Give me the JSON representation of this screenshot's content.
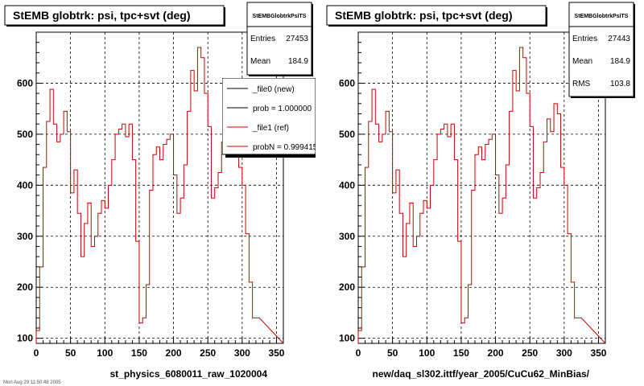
{
  "colors": {
    "background": "#ffffff",
    "axis": "#000000",
    "grid": "#000000",
    "hist_new": "#000000",
    "hist_ref": "#cc0000",
    "legend_shadow": "#000000"
  },
  "chart_data": [
    {
      "type": "histogram",
      "title": "StEMB globtrk: psi, tpc+svt (deg)",
      "xlabel": "st_physics_6080011_raw_1020004",
      "xlim": [
        0,
        360
      ],
      "ylim": [
        90,
        700
      ],
      "x_ticks": [
        0,
        50,
        100,
        150,
        200,
        250,
        300,
        350
      ],
      "y_ticks": [
        100,
        200,
        300,
        400,
        500,
        600
      ],
      "grid": true,
      "bin_width": 5,
      "stats": {
        "name": "StEMBGlobtrkPsiTS",
        "rows": [
          {
            "label": "Entries",
            "value": "27453"
          },
          {
            "label": "Mean",
            "value": "184.9"
          }
        ]
      },
      "legend": {
        "placement": "top-right",
        "entries": [
          {
            "label": "_file0 (new)",
            "color": "#000000"
          },
          {
            "label": "prob = 1.000000",
            "color": "#000000"
          },
          {
            "label": "_file1 (ref)",
            "color": "#cc0000"
          },
          {
            "label": "probN = 0.999415",
            "color": "#cc0000"
          }
        ]
      },
      "series": [
        {
          "color": "#cc0000",
          "values": [
            115,
            240,
            435,
            525,
            588,
            520,
            485,
            500,
            545,
            505,
            385,
            430,
            345,
            260,
            325,
            365,
            280,
            300,
            345,
            370,
            355,
            400,
            450,
            500,
            510,
            520,
            495,
            520,
            450,
            290,
            130,
            140,
            205,
            390,
            460,
            475,
            450,
            480,
            490,
            500,
            420,
            345,
            375,
            440,
            545,
            625,
            585,
            670,
            650,
            580,
            515,
            375,
            395,
            425,
            485,
            530,
            505,
            560,
            540,
            435,
            400,
            305,
            210,
            140,
            140
          ]
        }
      ]
    },
    {
      "type": "histogram",
      "title": "StEMB globtrk: psi, tpc+svt (deg)",
      "xlabel": "new/daq_sl302.ittf/year_2005/CuCu62_MinBias/",
      "xlim": [
        0,
        360
      ],
      "ylim": [
        90,
        700
      ],
      "x_ticks": [
        0,
        50,
        100,
        150,
        200,
        250,
        300,
        350
      ],
      "y_ticks": [
        100,
        200,
        300,
        400,
        500,
        600
      ],
      "grid": true,
      "bin_width": 5,
      "stats": {
        "name": "StEMBGlobtrkPsiTS",
        "rows": [
          {
            "label": "Entries",
            "value": "27443"
          },
          {
            "label": "Mean",
            "value": "184.9"
          },
          {
            "label": "RMS",
            "value": "103.8"
          }
        ]
      },
      "series": [
        {
          "color": "#cc0000",
          "values": [
            115,
            240,
            435,
            525,
            588,
            520,
            485,
            500,
            545,
            505,
            385,
            430,
            345,
            260,
            325,
            365,
            280,
            300,
            345,
            370,
            355,
            400,
            450,
            500,
            510,
            520,
            495,
            520,
            450,
            290,
            130,
            140,
            205,
            390,
            460,
            475,
            450,
            480,
            490,
            500,
            420,
            345,
            375,
            440,
            545,
            625,
            585,
            670,
            650,
            580,
            515,
            375,
            395,
            425,
            485,
            530,
            505,
            560,
            540,
            435,
            400,
            305,
            210,
            140,
            140
          ]
        }
      ]
    }
  ],
  "footer": {
    "timestamp": "Mon Aug 29 11:50:48 2005"
  }
}
